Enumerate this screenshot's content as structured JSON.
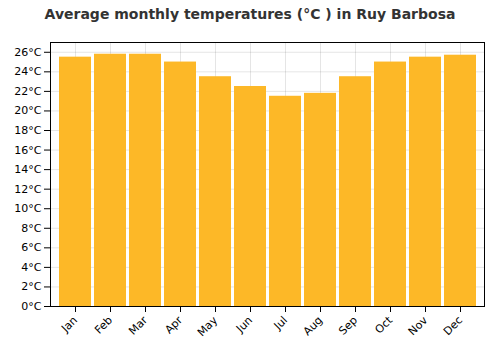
{
  "chart_data": {
    "type": "bar",
    "title": "Average monthly temperatures (°C ) in Ruy Barbosa",
    "categories": [
      "Jan",
      "Feb",
      "Mar",
      "Apr",
      "May",
      "Jun",
      "Jul",
      "Aug",
      "Sep",
      "Oct",
      "Nov",
      "Dec"
    ],
    "values": [
      25.5,
      25.8,
      25.8,
      25.0,
      23.5,
      22.5,
      21.5,
      21.8,
      23.5,
      25.0,
      25.5,
      25.7
    ],
    "color": "#FDB827",
    "ylim": [
      0,
      27
    ],
    "yticks": [
      {
        "value": 0,
        "label": "0°C"
      },
      {
        "value": 2,
        "label": "2°C"
      },
      {
        "value": 4,
        "label": "4°C"
      },
      {
        "value": 6,
        "label": "6°C"
      },
      {
        "value": 8,
        "label": "8°C"
      },
      {
        "value": 10,
        "label": "10°C"
      },
      {
        "value": 12,
        "label": "12°C"
      },
      {
        "value": 14,
        "label": "14°C"
      },
      {
        "value": 16,
        "label": "16°C"
      },
      {
        "value": 18,
        "label": "18°C"
      },
      {
        "value": 20,
        "label": "20°C"
      },
      {
        "value": 22,
        "label": "22°C"
      },
      {
        "value": 24,
        "label": "24°C"
      },
      {
        "value": 26,
        "label": "26°C"
      }
    ],
    "grid": true
  }
}
